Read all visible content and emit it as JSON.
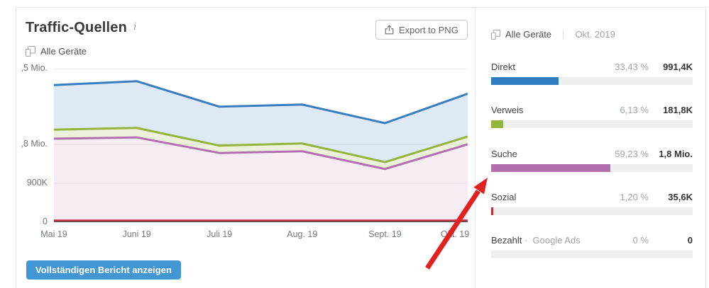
{
  "header": {
    "title": "Traffic-Quellen",
    "info_icon": "i",
    "device_filter": "Alle Geräte",
    "export_label": "Export to PNG"
  },
  "footer": {
    "report_button": "Vollständigen Bericht anzeigen",
    "button_color": "#4296d4"
  },
  "right_panel": {
    "device_filter": "Alle Geräte",
    "separator": "|",
    "period": "Okt. 2019",
    "rows": [
      {
        "label": "Direkt",
        "sublabel": "",
        "percent": "33,43 %",
        "percent_value": 33.43,
        "value": "991,4K",
        "color": "#2f7dc1"
      },
      {
        "label": "Verweis",
        "sublabel": "",
        "percent": "6,13 %",
        "percent_value": 6.13,
        "value": "181,8K",
        "color": "#95b43e"
      },
      {
        "label": "Suche",
        "sublabel": "",
        "percent": "59,23 %",
        "percent_value": 59.23,
        "value": "1,8 Mio.",
        "color": "#b26fae"
      },
      {
        "label": "Sozial",
        "sublabel": "",
        "percent": "1,20 %",
        "percent_value": 1.2,
        "value": "35,6K",
        "color": "#c0333c"
      },
      {
        "label": "Bezahlt",
        "sublabel": "Google Ads",
        "percent": "0 %",
        "percent_value": 0,
        "value": "0",
        "color": "#c0333c"
      }
    ]
  },
  "chart_data": {
    "type": "area",
    "stacked": true,
    "x": [
      "Mai 19",
      "Juni 19",
      "Juli 19",
      "Aug. 19",
      "Sept. 19",
      "Okt. 19"
    ],
    "unit": "Mio. Besuche",
    "series": [
      {
        "name": "Suche",
        "color": "#b26fae",
        "fill": "rgba(178,105,171,0.13)",
        "values": [
          1.93,
          1.96,
          1.6,
          1.64,
          1.23,
          1.8
        ]
      },
      {
        "name": "Verweis",
        "color": "#95b43e",
        "fill": "rgba(150,180,62,0.18)",
        "values": [
          0.21,
          0.22,
          0.17,
          0.18,
          0.16,
          0.18
        ]
      },
      {
        "name": "Direkt",
        "color": "#377dc0",
        "fill": "rgba(55,125,192,0.17)",
        "values": [
          1.03,
          1.08,
          0.9,
          0.9,
          0.9,
          0.99
        ]
      },
      {
        "name": "Sozial",
        "color": "#c0333c",
        "stacked": false,
        "values": [
          0.04,
          0.04,
          0.04,
          0.04,
          0.04,
          0.04
        ]
      },
      {
        "name": "Bezahlt",
        "color": "#4d525a",
        "stacked": false,
        "values": [
          0,
          0,
          0,
          0,
          0,
          0
        ]
      }
    ],
    "y_ticks": [
      {
        "label": "0",
        "value": 0
      },
      {
        "label": "900K",
        "value": 0.9
      },
      {
        "label": ",8 Mio.",
        "value": 1.8
      },
      {
        "label": ",5 Mio.",
        "value": 3.55
      }
    ],
    "ylim": [
      0,
      3.55
    ],
    "grid": true,
    "legend": "none",
    "gridline_color": "#e9ecef",
    "baseline_color": "#4d525a"
  },
  "annotation_arrow": {
    "color": "#e2201f"
  }
}
